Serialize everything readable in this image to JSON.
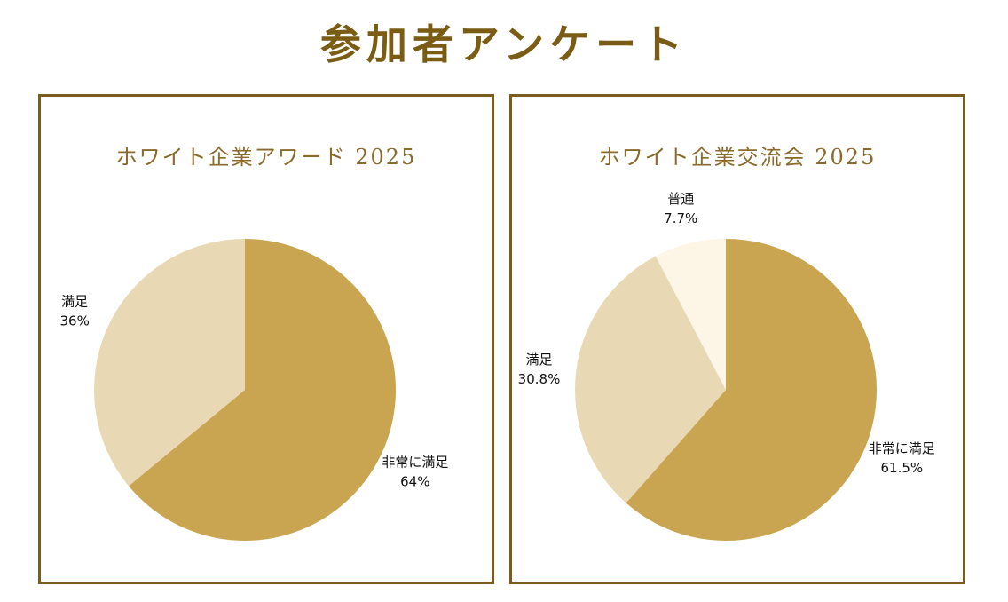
{
  "page": {
    "title": "参加者アンケート"
  },
  "colors": {
    "title": "#7a5c14",
    "panel_border": "#7a5c1e",
    "panel_title": "#8a6a2a",
    "very_satisfied": "#c9a552",
    "satisfied": "#e8d8b4",
    "neutral": "#fdf6e6"
  },
  "chart_data": [
    {
      "type": "pie",
      "title": "ホワイト企業アワード 2025",
      "slices": [
        {
          "label": "非常に満足",
          "value": 64,
          "display": "64%",
          "color": "#c9a552"
        },
        {
          "label": "満足",
          "value": 36,
          "display": "36%",
          "color": "#e8d8b4"
        }
      ]
    },
    {
      "type": "pie",
      "title": "ホワイト企業交流会 2025",
      "slices": [
        {
          "label": "非常に満足",
          "value": 61.5,
          "display": "61.5%",
          "color": "#c9a552"
        },
        {
          "label": "満足",
          "value": 30.8,
          "display": "30.8%",
          "color": "#e8d8b4"
        },
        {
          "label": "普通",
          "value": 7.7,
          "display": "7.7%",
          "color": "#fdf6e6"
        }
      ]
    }
  ]
}
